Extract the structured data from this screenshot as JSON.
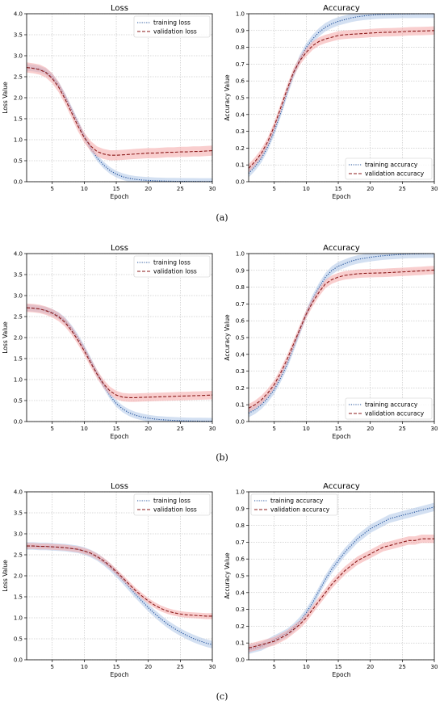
{
  "colors": {
    "train_line": "#1f4f9a",
    "train_band": "#aec7e8",
    "val_line": "#8b1a1a",
    "val_band": "#f4a6a6",
    "grid": "#b0b0b0"
  },
  "rows": [
    {
      "caption": "(a)",
      "panels": [
        {
          "key": "a-loss",
          "title": "Loss",
          "ylabel": "Loss Value",
          "xlabel": "Epoch",
          "legend_pos": "top-right"
        },
        {
          "key": "a-acc",
          "title": "Accuracy",
          "ylabel": "Accuracy Value",
          "xlabel": "Epoch",
          "legend_pos": "bottom-right"
        }
      ]
    },
    {
      "caption": "(b)",
      "panels": [
        {
          "key": "b-loss",
          "title": "Loss",
          "ylabel": "Loss Value",
          "xlabel": "Epoch",
          "legend_pos": "top-right"
        },
        {
          "key": "b-acc",
          "title": "Accuracy",
          "ylabel": "Accuracy Value",
          "xlabel": "Epoch",
          "legend_pos": "bottom-right"
        }
      ]
    },
    {
      "caption": "(c)",
      "panels": [
        {
          "key": "c-loss",
          "title": "Loss",
          "ylabel": "Loss Value",
          "xlabel": "Epoch",
          "legend_pos": "top-right"
        },
        {
          "key": "c-acc",
          "title": "Accuracy",
          "ylabel": "Accuracy Value",
          "xlabel": "Epoch",
          "legend_pos": "top-left"
        }
      ]
    }
  ],
  "chart_data": [
    {
      "panel": "a-loss",
      "type": "line",
      "title": "Loss",
      "xlabel": "Epoch",
      "ylabel": "Loss Value",
      "xlim": [
        1,
        30
      ],
      "ylim": [
        0,
        4.0
      ],
      "xticks": [
        5,
        10,
        15,
        20,
        25,
        30
      ],
      "yticks": [
        "0.0",
        "0.5",
        "1.0",
        "1.5",
        "2.0",
        "2.5",
        "3.0",
        "3.5",
        "4.0"
      ],
      "grid": true,
      "legend_position": "top-right",
      "x": [
        1,
        2,
        3,
        4,
        5,
        6,
        7,
        8,
        9,
        10,
        11,
        12,
        13,
        14,
        15,
        16,
        17,
        18,
        19,
        20,
        21,
        22,
        23,
        24,
        25,
        26,
        27,
        28,
        29,
        30
      ],
      "series": [
        {
          "name": "training loss",
          "style": "dotted",
          "color": "train",
          "values": [
            2.72,
            2.71,
            2.68,
            2.62,
            2.5,
            2.3,
            2.03,
            1.72,
            1.4,
            1.08,
            0.8,
            0.57,
            0.4,
            0.27,
            0.18,
            0.12,
            0.08,
            0.055,
            0.04,
            0.03,
            0.022,
            0.017,
            0.013,
            0.01,
            0.008,
            0.007,
            0.006,
            0.005,
            0.004,
            0.004
          ],
          "band": 0.08
        },
        {
          "name": "validation loss",
          "style": "dashed",
          "color": "val",
          "values": [
            2.72,
            2.7,
            2.67,
            2.6,
            2.46,
            2.25,
            1.97,
            1.65,
            1.33,
            1.05,
            0.85,
            0.72,
            0.66,
            0.63,
            0.63,
            0.64,
            0.65,
            0.66,
            0.67,
            0.68,
            0.68,
            0.69,
            0.7,
            0.7,
            0.71,
            0.71,
            0.72,
            0.72,
            0.73,
            0.74
          ],
          "band": 0.12
        }
      ]
    },
    {
      "panel": "a-acc",
      "type": "line",
      "title": "Accuracy",
      "xlabel": "Epoch",
      "ylabel": "Accuracy Value",
      "xlim": [
        1,
        30
      ],
      "ylim": [
        0,
        1.0
      ],
      "xticks": [
        5,
        10,
        15,
        20,
        25,
        30
      ],
      "yticks": [
        "0.0",
        "0.1",
        "0.2",
        "0.3",
        "0.4",
        "0.5",
        "0.6",
        "0.7",
        "0.8",
        "0.9",
        "1.0"
      ],
      "grid": true,
      "legend_position": "bottom-right",
      "x": [
        1,
        2,
        3,
        4,
        5,
        6,
        7,
        8,
        9,
        10,
        11,
        12,
        13,
        14,
        15,
        16,
        17,
        18,
        19,
        20,
        21,
        22,
        23,
        24,
        25,
        26,
        27,
        28,
        29,
        30
      ],
      "series": [
        {
          "name": "training accuracy",
          "style": "dotted",
          "color": "train",
          "values": [
            0.05,
            0.09,
            0.14,
            0.21,
            0.3,
            0.41,
            0.53,
            0.64,
            0.73,
            0.8,
            0.85,
            0.89,
            0.92,
            0.94,
            0.955,
            0.965,
            0.975,
            0.982,
            0.987,
            0.991,
            0.994,
            0.996,
            0.997,
            0.998,
            0.999,
            0.999,
            1.0,
            1.0,
            1.0,
            1.0
          ],
          "band": 0.025
        },
        {
          "name": "validation accuracy",
          "style": "dashed",
          "color": "val",
          "values": [
            0.08,
            0.12,
            0.17,
            0.24,
            0.33,
            0.44,
            0.55,
            0.65,
            0.72,
            0.77,
            0.81,
            0.835,
            0.85,
            0.86,
            0.87,
            0.875,
            0.878,
            0.88,
            0.882,
            0.885,
            0.887,
            0.889,
            0.89,
            0.891,
            0.893,
            0.895,
            0.896,
            0.897,
            0.898,
            0.9
          ],
          "band": 0.025
        }
      ]
    },
    {
      "panel": "b-loss",
      "type": "line",
      "title": "Loss",
      "xlabel": "Epoch",
      "ylabel": "Loss Value",
      "xlim": [
        1,
        30
      ],
      "ylim": [
        0,
        4.0
      ],
      "xticks": [
        5,
        10,
        15,
        20,
        25,
        30
      ],
      "yticks": [
        "0.0",
        "0.5",
        "1.0",
        "1.5",
        "2.0",
        "2.5",
        "3.0",
        "3.5",
        "4.0"
      ],
      "grid": true,
      "legend_position": "top-right",
      "x": [
        1,
        2,
        3,
        4,
        5,
        6,
        7,
        8,
        9,
        10,
        11,
        12,
        13,
        14,
        15,
        16,
        17,
        18,
        19,
        20,
        21,
        22,
        23,
        24,
        25,
        26,
        27,
        28,
        29,
        30
      ],
      "series": [
        {
          "name": "training loss",
          "style": "dotted",
          "color": "train",
          "values": [
            2.71,
            2.7,
            2.68,
            2.65,
            2.6,
            2.52,
            2.4,
            2.22,
            2.0,
            1.74,
            1.45,
            1.15,
            0.87,
            0.62,
            0.43,
            0.3,
            0.21,
            0.15,
            0.11,
            0.08,
            0.06,
            0.045,
            0.035,
            0.027,
            0.02,
            0.015,
            0.012,
            0.01,
            0.008,
            0.006
          ],
          "band": 0.08
        },
        {
          "name": "validation loss",
          "style": "dashed",
          "color": "val",
          "values": [
            2.71,
            2.7,
            2.68,
            2.64,
            2.58,
            2.49,
            2.36,
            2.17,
            1.94,
            1.68,
            1.4,
            1.13,
            0.9,
            0.73,
            0.63,
            0.58,
            0.57,
            0.57,
            0.575,
            0.58,
            0.585,
            0.59,
            0.595,
            0.6,
            0.605,
            0.61,
            0.615,
            0.62,
            0.625,
            0.63
          ],
          "band": 0.1
        }
      ]
    },
    {
      "panel": "b-acc",
      "type": "line",
      "title": "Accuracy",
      "xlabel": "Epoch",
      "ylabel": "Accuracy Value",
      "xlim": [
        1,
        30
      ],
      "ylim": [
        0,
        1.0
      ],
      "xticks": [
        5,
        10,
        15,
        20,
        25,
        30
      ],
      "yticks": [
        "0.0",
        "0.1",
        "0.2",
        "0.3",
        "0.4",
        "0.5",
        "0.6",
        "0.7",
        "0.8",
        "0.9",
        "1.0"
      ],
      "grid": true,
      "legend_position": "bottom-right",
      "x": [
        1,
        2,
        3,
        4,
        5,
        6,
        7,
        8,
        9,
        10,
        11,
        12,
        13,
        14,
        15,
        16,
        17,
        18,
        19,
        20,
        21,
        22,
        23,
        24,
        25,
        26,
        27,
        28,
        29,
        30
      ],
      "series": [
        {
          "name": "training accuracy",
          "style": "dotted",
          "color": "train",
          "values": [
            0.05,
            0.07,
            0.1,
            0.14,
            0.19,
            0.26,
            0.34,
            0.44,
            0.54,
            0.64,
            0.73,
            0.8,
            0.86,
            0.9,
            0.925,
            0.94,
            0.955,
            0.965,
            0.972,
            0.978,
            0.983,
            0.987,
            0.99,
            0.993,
            0.995,
            0.997,
            0.998,
            0.999,
            1.0,
            1.0
          ],
          "band": 0.025
        },
        {
          "name": "validation accuracy",
          "style": "dashed",
          "color": "val",
          "values": [
            0.08,
            0.1,
            0.13,
            0.17,
            0.22,
            0.29,
            0.37,
            0.46,
            0.55,
            0.64,
            0.71,
            0.77,
            0.82,
            0.845,
            0.86,
            0.87,
            0.875,
            0.88,
            0.882,
            0.883,
            0.884,
            0.885,
            0.887,
            0.889,
            0.891,
            0.893,
            0.895,
            0.897,
            0.9,
            0.902
          ],
          "band": 0.025
        }
      ]
    },
    {
      "panel": "c-loss",
      "type": "line",
      "title": "Loss",
      "xlabel": "Epoch",
      "ylabel": "Loss Value",
      "xlim": [
        1,
        30
      ],
      "ylim": [
        0,
        4.0
      ],
      "xticks": [
        5,
        10,
        15,
        20,
        25,
        30
      ],
      "yticks": [
        "0.0",
        "0.5",
        "1.0",
        "1.5",
        "2.0",
        "2.5",
        "3.0",
        "3.5",
        "4.0"
      ],
      "grid": true,
      "legend_position": "top-right",
      "x": [
        1,
        2,
        3,
        4,
        5,
        6,
        7,
        8,
        9,
        10,
        11,
        12,
        13,
        14,
        15,
        16,
        17,
        18,
        19,
        20,
        21,
        22,
        23,
        24,
        25,
        26,
        27,
        28,
        29,
        30
      ],
      "series": [
        {
          "name": "training loss",
          "style": "dotted",
          "color": "train",
          "values": [
            2.71,
            2.71,
            2.7,
            2.7,
            2.69,
            2.68,
            2.67,
            2.65,
            2.63,
            2.59,
            2.53,
            2.45,
            2.34,
            2.21,
            2.06,
            1.9,
            1.73,
            1.56,
            1.4,
            1.24,
            1.1,
            0.97,
            0.85,
            0.75,
            0.66,
            0.58,
            0.51,
            0.45,
            0.4,
            0.36
          ],
          "band": 0.09
        },
        {
          "name": "validation loss",
          "style": "dashed",
          "color": "val",
          "values": [
            2.71,
            2.71,
            2.7,
            2.7,
            2.69,
            2.68,
            2.67,
            2.65,
            2.63,
            2.59,
            2.54,
            2.46,
            2.36,
            2.24,
            2.1,
            1.95,
            1.8,
            1.65,
            1.52,
            1.4,
            1.3,
            1.22,
            1.16,
            1.12,
            1.09,
            1.07,
            1.06,
            1.05,
            1.04,
            1.04
          ],
          "band": 0.07
        }
      ]
    },
    {
      "panel": "c-acc",
      "type": "line",
      "title": "Accuracy",
      "xlabel": "Epoch",
      "ylabel": "Accuracy Value",
      "xlim": [
        1,
        30
      ],
      "ylim": [
        0,
        1.0
      ],
      "xticks": [
        5,
        10,
        15,
        20,
        25,
        30
      ],
      "yticks": [
        "0.0",
        "0.1",
        "0.2",
        "0.3",
        "0.4",
        "0.5",
        "0.6",
        "0.7",
        "0.8",
        "0.9",
        "1.0"
      ],
      "grid": true,
      "legend_position": "top-left",
      "x": [
        1,
        2,
        3,
        4,
        5,
        6,
        7,
        8,
        9,
        10,
        11,
        12,
        13,
        14,
        15,
        16,
        17,
        18,
        19,
        20,
        21,
        22,
        23,
        24,
        25,
        26,
        27,
        28,
        29,
        30
      ],
      "series": [
        {
          "name": "training accuracy",
          "style": "dotted",
          "color": "train",
          "values": [
            0.06,
            0.07,
            0.08,
            0.1,
            0.12,
            0.14,
            0.16,
            0.19,
            0.23,
            0.28,
            0.34,
            0.41,
            0.48,
            0.54,
            0.59,
            0.64,
            0.68,
            0.72,
            0.75,
            0.78,
            0.8,
            0.82,
            0.84,
            0.85,
            0.86,
            0.87,
            0.88,
            0.89,
            0.9,
            0.91
          ],
          "band": 0.025
        },
        {
          "name": "validation accuracy",
          "style": "dashed",
          "color": "val",
          "values": [
            0.07,
            0.08,
            0.09,
            0.1,
            0.11,
            0.13,
            0.15,
            0.18,
            0.21,
            0.25,
            0.3,
            0.35,
            0.4,
            0.45,
            0.49,
            0.53,
            0.56,
            0.59,
            0.61,
            0.63,
            0.65,
            0.67,
            0.68,
            0.69,
            0.7,
            0.71,
            0.71,
            0.72,
            0.72,
            0.72
          ],
          "band": 0.025
        }
      ]
    }
  ]
}
